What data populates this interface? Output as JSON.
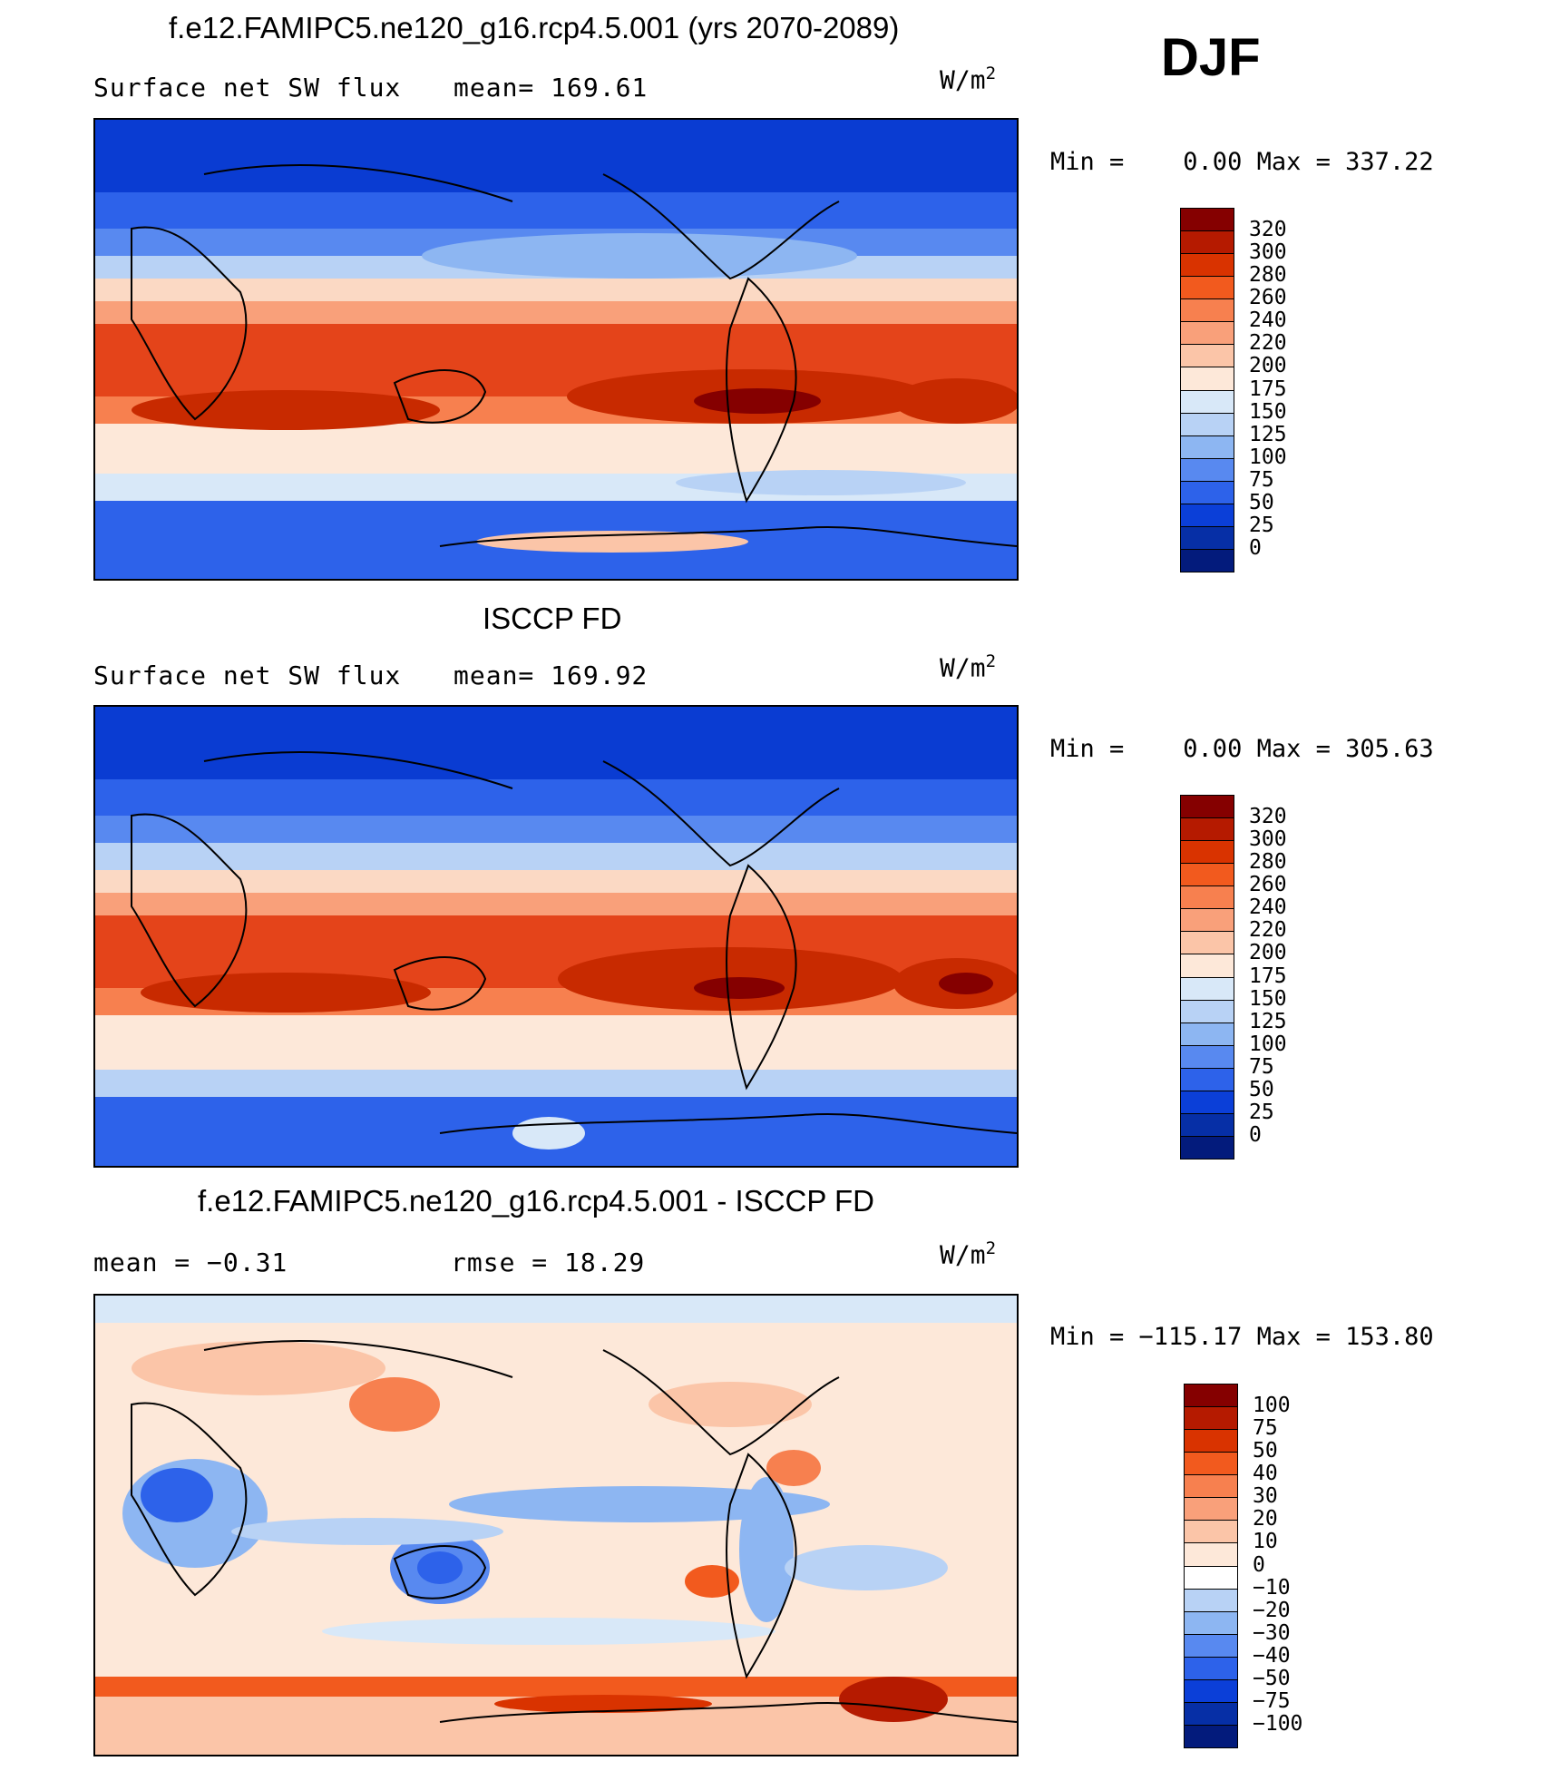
{
  "season": "DJF",
  "chart_data": [
    {
      "type": "heatmap",
      "title": "f.e12.FAMIPC5.ne120_g16.rcp4.5.001 (yrs 2070-2089)",
      "variable": "Surface net SW flux",
      "stat_text": "mean= 169.61",
      "mean": 169.61,
      "units": "W/m",
      "units_power": "2",
      "minmax_text": "Min =    0.00 Max = 337.22",
      "min": 0.0,
      "max": 337.22,
      "colorbar": {
        "labels": [
          "320",
          "300",
          "280",
          "260",
          "240",
          "220",
          "200",
          "175",
          "150",
          "125",
          "100",
          "75",
          "50",
          "25",
          "0"
        ],
        "colors": [
          "#850000",
          "#b51a00",
          "#d93300",
          "#f25a1e",
          "#f7804f",
          "#f9a07a",
          "#fbc5a8",
          "#fde8d9",
          "#d8e8f8",
          "#b8d2f5",
          "#8db6f2",
          "#5889f0",
          "#2d62ea",
          "#0b3fd8",
          "#062fa6",
          "#031b7c"
        ]
      }
    },
    {
      "type": "heatmap",
      "title": "ISCCP FD",
      "variable": "Surface net SW flux",
      "stat_text": "mean= 169.92",
      "mean": 169.92,
      "units": "W/m",
      "units_power": "2",
      "minmax_text": "Min =    0.00 Max = 305.63",
      "min": 0.0,
      "max": 305.63,
      "colorbar": {
        "labels": [
          "320",
          "300",
          "280",
          "260",
          "240",
          "220",
          "200",
          "175",
          "150",
          "125",
          "100",
          "75",
          "50",
          "25",
          "0"
        ],
        "colors": [
          "#850000",
          "#b51a00",
          "#d93300",
          "#f25a1e",
          "#f7804f",
          "#f9a07a",
          "#fbc5a8",
          "#fde8d9",
          "#d8e8f8",
          "#b8d2f5",
          "#8db6f2",
          "#5889f0",
          "#2d62ea",
          "#0b3fd8",
          "#062fa6",
          "#031b7c"
        ]
      }
    },
    {
      "type": "heatmap",
      "title": "f.e12.FAMIPC5.ne120_g16.rcp4.5.001 - ISCCP FD",
      "variable": "",
      "stat_text": "mean =   −0.31",
      "stat2_text": "rmse =    18.29",
      "mean": -0.31,
      "rmse": 18.29,
      "units": "W/m",
      "units_power": "2",
      "minmax_text": "Min = −115.17 Max = 153.80",
      "min": -115.17,
      "max": 153.8,
      "colorbar": {
        "labels": [
          "100",
          "75",
          "50",
          "40",
          "30",
          "20",
          "10",
          "0",
          "−10",
          "−20",
          "−30",
          "−40",
          "−50",
          "−75",
          "−100"
        ],
        "colors": [
          "#850000",
          "#b51a00",
          "#d93300",
          "#f25a1e",
          "#f7804f",
          "#f9a07a",
          "#fbc5a8",
          "#fde8d9",
          "#ffffff",
          "#b8d2f5",
          "#8db6f2",
          "#5889f0",
          "#2d62ea",
          "#0b3fd8",
          "#062fa6",
          "#031b7c"
        ]
      }
    }
  ]
}
